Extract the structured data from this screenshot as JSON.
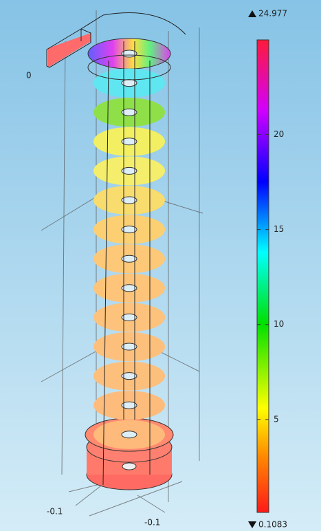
{
  "colorbar": {
    "min": 0.1083,
    "max": 24.977,
    "ticks": [
      5,
      10,
      15,
      20
    ]
  },
  "axis_labels": [
    "0",
    "-0.1",
    "-0.1"
  ]
}
